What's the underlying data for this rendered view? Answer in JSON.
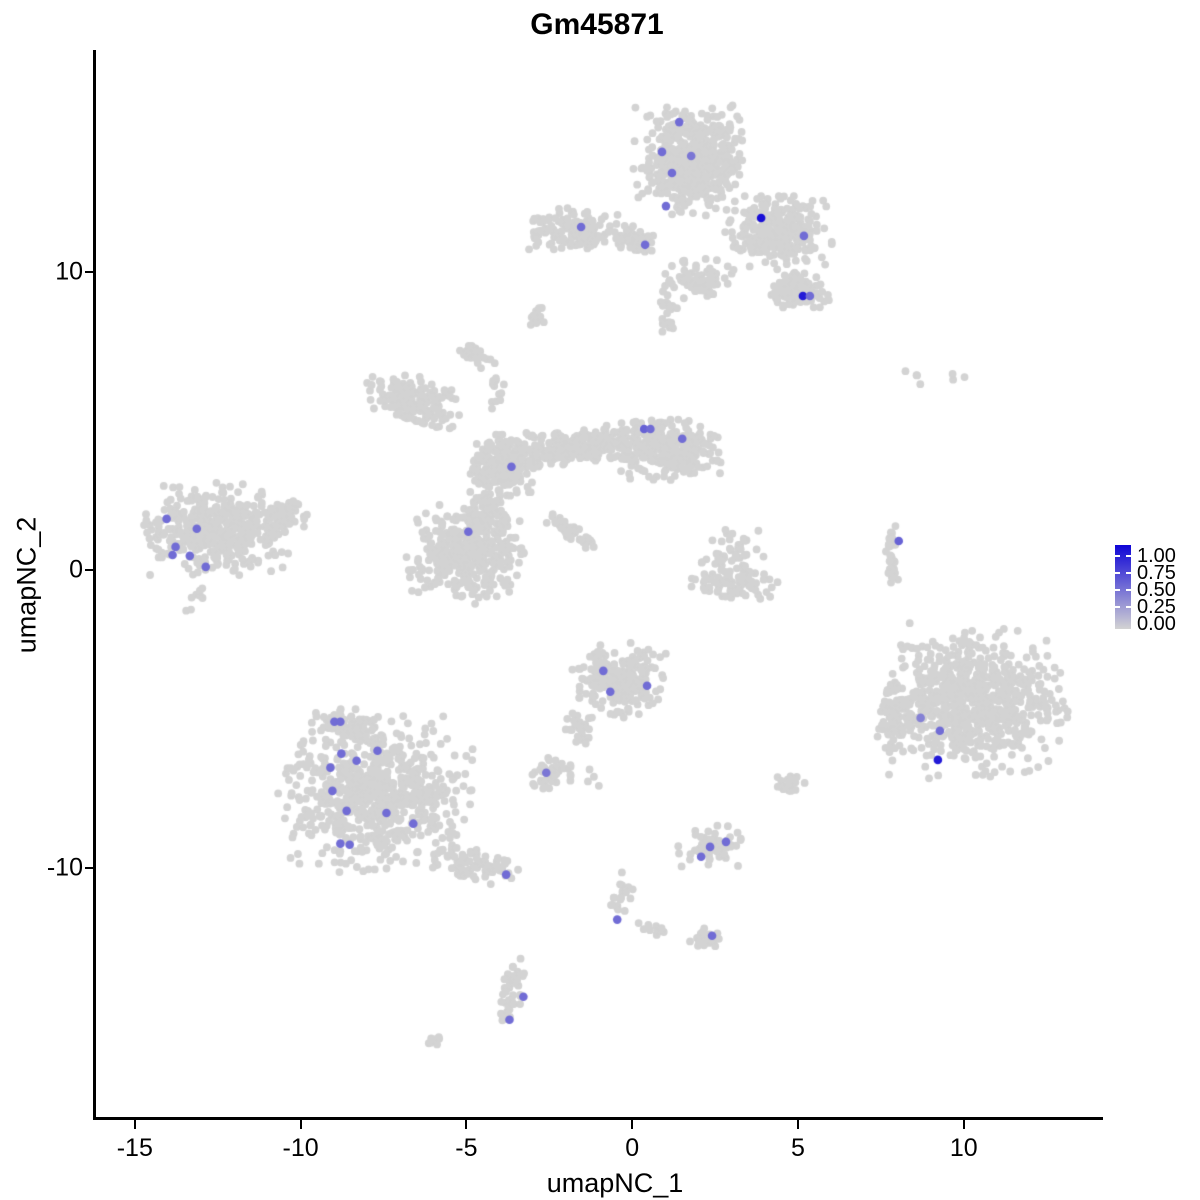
{
  "title": "Gm45871",
  "axes": {
    "x_label": "umapNC_1",
    "y_label": "umapNC_2"
  },
  "legend": {
    "labels": [
      "1.00",
      "0.75",
      "0.50",
      "0.25",
      "0.00"
    ],
    "low_color_hex": "#D3D3D3",
    "high_color_hex": "#0F05D7"
  },
  "chart_data": {
    "type": "scatter",
    "title": "Gm45871",
    "xlabel": "umapNC_1",
    "ylabel": "umapNC_2",
    "xlim": [
      -16.2,
      14.2
    ],
    "ylim": [
      -18.4,
      17.45
    ],
    "x_ticks": [
      -15,
      -10,
      -5,
      0,
      5,
      10
    ],
    "y_ticks": [
      -10,
      0,
      10
    ],
    "grid": false,
    "legend_position": "right",
    "legend_values": [
      1.0,
      0.75,
      0.5,
      0.25,
      0.0
    ],
    "base_point_color": "#D3D3D3",
    "max_point_color": "#0F05D7",
    "point_radius_px": 3.9,
    "seed": 7,
    "cluster_fields": [
      "n",
      "cx",
      "cy",
      "sx",
      "sy",
      "rot_deg"
    ],
    "clusters": [
      [
        550,
        1.72,
        13.76,
        0.75,
        0.82,
        0
      ],
      [
        300,
        4.43,
        11.41,
        0.72,
        0.55,
        0
      ],
      [
        120,
        5.03,
        9.45,
        0.4,
        0.3,
        0
      ],
      [
        160,
        -1.75,
        11.41,
        0.68,
        0.32,
        0
      ],
      [
        55,
        0.06,
        11.07,
        0.3,
        0.24,
        0
      ],
      [
        80,
        2.05,
        9.75,
        0.5,
        0.3,
        0
      ],
      [
        22,
        1.05,
        8.6,
        0.14,
        0.34,
        0
      ],
      [
        14,
        -2.86,
        8.56,
        0.15,
        0.17,
        0
      ],
      [
        26,
        -4.61,
        7.21,
        0.28,
        0.2,
        -20
      ],
      [
        12,
        -4.1,
        5.95,
        0.1,
        0.34,
        -10
      ],
      [
        420,
        -12.59,
        1.34,
        0.98,
        0.7,
        0
      ],
      [
        55,
        -10.48,
        1.85,
        0.33,
        0.27,
        0
      ],
      [
        8,
        -13.19,
        -0.84,
        0.2,
        0.25,
        0
      ],
      [
        170,
        -6.57,
        5.7,
        0.7,
        0.38,
        -25
      ],
      [
        250,
        -3.86,
        3.52,
        0.5,
        0.46,
        0
      ],
      [
        210,
        -1.45,
        4.19,
        0.88,
        0.27,
        8
      ],
      [
        290,
        1.11,
        4.03,
        0.72,
        0.46,
        0
      ],
      [
        380,
        -5.06,
        0.5,
        0.78,
        0.74,
        0
      ],
      [
        90,
        -4.31,
        2.01,
        0.33,
        0.4,
        0
      ],
      [
        55,
        -1.84,
        1.28,
        0.44,
        0.11,
        -38
      ],
      [
        80,
        3.07,
        -0.5,
        0.64,
        0.25,
        0
      ],
      [
        50,
        3.07,
        0.5,
        0.54,
        0.44,
        0
      ],
      [
        38,
        7.83,
        0.47,
        0.1,
        0.52,
        0
      ],
      [
        7,
        9.05,
        6.6,
        0.78,
        0.22,
        0
      ],
      [
        750,
        10.3,
        -4.36,
        1.25,
        1.15,
        0
      ],
      [
        80,
        7.92,
        -4.87,
        0.32,
        0.64,
        0
      ],
      [
        700,
        -7.77,
        -7.55,
        1.3,
        1.15,
        0
      ],
      [
        70,
        -4.61,
        -9.9,
        0.6,
        0.26,
        -18
      ],
      [
        80,
        -8.67,
        -5.2,
        0.44,
        0.27,
        0
      ],
      [
        35,
        -2.53,
        -6.88,
        0.29,
        0.25,
        0
      ],
      [
        230,
        -0.39,
        -3.69,
        0.66,
        0.56,
        0
      ],
      [
        25,
        -1.6,
        -5.54,
        0.19,
        0.42,
        15
      ],
      [
        10,
        -1.6,
        -6.88,
        0.32,
        0.27,
        0
      ],
      [
        20,
        4.73,
        -7.21,
        0.22,
        0.19,
        0
      ],
      [
        70,
        2.38,
        -9.23,
        0.44,
        0.33,
        0
      ],
      [
        20,
        -0.33,
        -11.07,
        0.17,
        0.5,
        0
      ],
      [
        10,
        0.66,
        -12.08,
        0.23,
        0.14,
        0
      ],
      [
        25,
        2.2,
        -12.35,
        0.27,
        0.17,
        0
      ],
      [
        45,
        -3.64,
        -14.26,
        0.17,
        0.56,
        -8
      ],
      [
        8,
        -6.02,
        -15.81,
        0.15,
        0.12,
        0
      ],
      [
        6,
        -2.92,
        4.5,
        0.17,
        0.17,
        0
      ]
    ],
    "cell_fields": [
      "x",
      "y",
      "expression"
    ],
    "expressing_cells": [
      [
        1.42,
        15.03,
        0.5
      ],
      [
        0.9,
        14.03,
        0.5
      ],
      [
        1.78,
        13.89,
        0.45
      ],
      [
        1.2,
        13.32,
        0.5
      ],
      [
        1.02,
        12.21,
        0.5
      ],
      [
        -1.54,
        11.51,
        0.5
      ],
      [
        0.39,
        10.91,
        0.5
      ],
      [
        3.89,
        11.81,
        0.95
      ],
      [
        5.18,
        11.21,
        0.5
      ],
      [
        5.15,
        9.19,
        0.9
      ],
      [
        5.36,
        9.19,
        0.5
      ],
      [
        -14.04,
        1.71,
        0.5
      ],
      [
        -13.13,
        1.38,
        0.5
      ],
      [
        -13.77,
        0.77,
        0.5
      ],
      [
        -13.86,
        0.5,
        0.5
      ],
      [
        -13.34,
        0.47,
        0.5
      ],
      [
        -12.86,
        0.1,
        0.5
      ],
      [
        0.36,
        4.73,
        0.55
      ],
      [
        0.55,
        4.73,
        0.5
      ],
      [
        1.51,
        4.4,
        0.5
      ],
      [
        -3.64,
        3.46,
        0.5
      ],
      [
        -4.94,
        1.28,
        0.5
      ],
      [
        8.04,
        0.97,
        0.55
      ],
      [
        8.7,
        -4.97,
        0.4
      ],
      [
        9.28,
        -5.4,
        0.5
      ],
      [
        9.22,
        -6.38,
        0.9
      ],
      [
        -8.98,
        -5.1,
        0.5
      ],
      [
        -8.8,
        -5.1,
        0.5
      ],
      [
        -7.68,
        -6.07,
        0.5
      ],
      [
        -8.77,
        -6.17,
        0.5
      ],
      [
        -8.31,
        -6.41,
        0.5
      ],
      [
        -9.1,
        -6.64,
        0.5
      ],
      [
        -9.04,
        -7.42,
        0.5
      ],
      [
        -8.61,
        -8.09,
        0.5
      ],
      [
        -7.41,
        -8.16,
        0.5
      ],
      [
        -6.6,
        -8.52,
        0.5
      ],
      [
        -8.8,
        -9.19,
        0.5
      ],
      [
        -8.52,
        -9.23,
        0.5
      ],
      [
        -3.8,
        -10.23,
        0.5
      ],
      [
        -2.59,
        -6.81,
        0.45
      ],
      [
        -0.87,
        -3.39,
        0.5
      ],
      [
        -0.66,
        -4.09,
        0.5
      ],
      [
        0.45,
        -3.89,
        0.5
      ],
      [
        2.35,
        -9.3,
        0.5
      ],
      [
        2.83,
        -9.13,
        0.5
      ],
      [
        2.08,
        -9.63,
        0.5
      ],
      [
        -0.45,
        -11.74,
        0.5
      ],
      [
        2.41,
        -12.28,
        0.5
      ],
      [
        -3.28,
        -14.33,
        0.5
      ],
      [
        -3.7,
        -15.1,
        0.5
      ]
    ]
  }
}
